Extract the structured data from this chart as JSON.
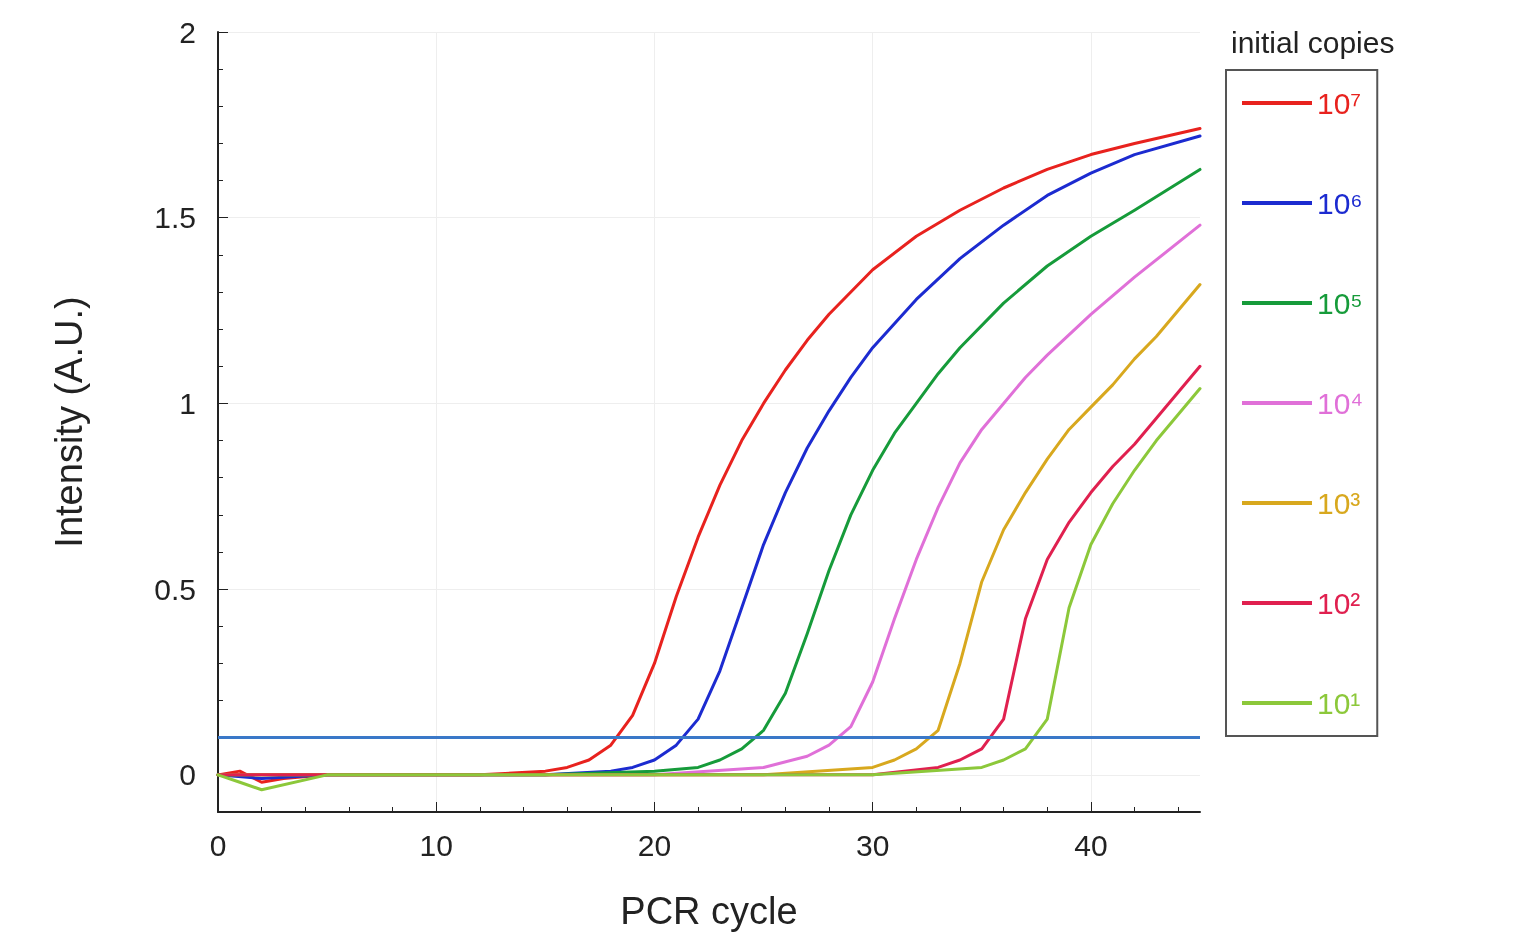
{
  "chart_data": {
    "type": "line",
    "xlabel": "PCR cycle",
    "ylabel": "Intensity (A.U.)",
    "legend_title": "initial copies",
    "xlim": [
      0,
      45
    ],
    "xticks": [
      0,
      10,
      20,
      30,
      40
    ],
    "ylim": [
      -0.1,
      2
    ],
    "yticks": [
      0,
      0.5,
      1,
      1.5,
      2
    ],
    "grid": true,
    "legend": "right",
    "marker": "none",
    "line_style": "solid",
    "ref_lines": [
      {
        "axis": "y",
        "value": 0.1,
        "color": "#3a78c8"
      }
    ],
    "series": [
      {
        "name": "10⁷",
        "color": "#e8221e",
        "x": [
          0,
          1,
          2,
          3,
          5,
          8,
          12,
          15,
          16,
          17,
          18,
          19,
          20,
          21,
          22,
          23,
          24,
          25,
          26,
          27,
          28,
          30,
          32,
          34,
          36,
          38,
          40,
          42,
          45
        ],
        "values": [
          0,
          0.01,
          -0.02,
          -0.01,
          0,
          0,
          0,
          0.01,
          0.02,
          0.04,
          0.08,
          0.16,
          0.3,
          0.48,
          0.64,
          0.78,
          0.9,
          1.0,
          1.09,
          1.17,
          1.24,
          1.36,
          1.45,
          1.52,
          1.58,
          1.63,
          1.67,
          1.7,
          1.74
        ]
      },
      {
        "name": "10⁶",
        "color": "#1c2bd0",
        "x": [
          0,
          2,
          5,
          10,
          15,
          18,
          19,
          20,
          21,
          22,
          23,
          24,
          25,
          26,
          27,
          28,
          29,
          30,
          32,
          34,
          36,
          38,
          40,
          42,
          45
        ],
        "values": [
          0,
          -0.01,
          0,
          0,
          0,
          0.01,
          0.02,
          0.04,
          0.08,
          0.15,
          0.28,
          0.45,
          0.62,
          0.76,
          0.88,
          0.98,
          1.07,
          1.15,
          1.28,
          1.39,
          1.48,
          1.56,
          1.62,
          1.67,
          1.72
        ]
      },
      {
        "name": "10⁵",
        "color": "#169b3a",
        "x": [
          0,
          5,
          10,
          15,
          20,
          22,
          23,
          24,
          25,
          26,
          27,
          28,
          29,
          30,
          31,
          32,
          33,
          34,
          36,
          38,
          40,
          42,
          45
        ],
        "values": [
          0,
          0,
          0,
          0,
          0.01,
          0.02,
          0.04,
          0.07,
          0.12,
          0.22,
          0.38,
          0.55,
          0.7,
          0.82,
          0.92,
          1.0,
          1.08,
          1.15,
          1.27,
          1.37,
          1.45,
          1.52,
          1.63
        ]
      },
      {
        "name": "10⁴",
        "color": "#e070d8",
        "x": [
          15,
          20,
          25,
          27,
          28,
          29,
          30,
          31,
          32,
          33,
          34,
          35,
          36,
          37,
          38,
          40,
          42,
          45
        ],
        "values": [
          0,
          0,
          0.02,
          0.05,
          0.08,
          0.13,
          0.25,
          0.42,
          0.58,
          0.72,
          0.84,
          0.93,
          1.0,
          1.07,
          1.13,
          1.24,
          1.34,
          1.48
        ]
      },
      {
        "name": "10³",
        "color": "#d8a81e",
        "x": [
          0,
          5,
          10,
          15,
          20,
          25,
          30,
          31,
          32,
          33,
          34,
          35,
          36,
          37,
          38,
          39,
          40,
          41,
          42,
          43,
          45
        ],
        "values": [
          0,
          0,
          0,
          0,
          0,
          0,
          0.02,
          0.04,
          0.07,
          0.12,
          0.3,
          0.52,
          0.66,
          0.76,
          0.85,
          0.93,
          0.99,
          1.05,
          1.12,
          1.18,
          1.32
        ]
      },
      {
        "name": "10²",
        "color": "#e0204f",
        "x": [
          0,
          5,
          10,
          15,
          20,
          25,
          30,
          33,
          34,
          35,
          36,
          37,
          38,
          39,
          40,
          41,
          42,
          43,
          44,
          45
        ],
        "values": [
          0,
          0,
          0,
          0,
          0,
          0,
          0,
          0.02,
          0.04,
          0.07,
          0.15,
          0.42,
          0.58,
          0.68,
          0.76,
          0.83,
          0.89,
          0.96,
          1.03,
          1.1
        ]
      },
      {
        "name": "10¹",
        "color": "#8cc83a",
        "x": [
          0,
          1,
          2,
          5,
          10,
          15,
          20,
          25,
          30,
          35,
          36,
          37,
          38,
          39,
          40,
          41,
          42,
          43,
          44,
          45
        ],
        "values": [
          0,
          -0.02,
          -0.04,
          0,
          0,
          0,
          0,
          0,
          0,
          0.02,
          0.04,
          0.07,
          0.15,
          0.45,
          0.62,
          0.73,
          0.82,
          0.9,
          0.97,
          1.04
        ]
      }
    ]
  }
}
